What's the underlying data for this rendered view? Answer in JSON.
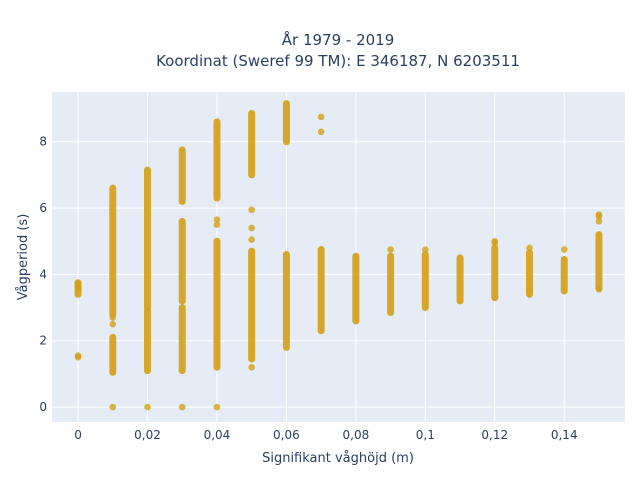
{
  "chart_data": {
    "type": "scatter",
    "title_lines": [
      "År 1979 - 2019",
      "Koordinat (Sweref 99 TM): E 346187, N 6203511"
    ],
    "xlabel": "Signifikant våghöjd (m)",
    "ylabel": "Vågperiod (s)",
    "xlim": [
      -0.0075,
      0.1575
    ],
    "ylim": [
      -0.45,
      9.5
    ],
    "x_ticks": [
      0,
      0.02,
      0.04,
      0.06,
      0.08,
      0.1,
      0.12,
      0.14
    ],
    "x_tick_labels": [
      "0",
      "0,02",
      "0,04",
      "0,06",
      "0,08",
      "0,1",
      "0,12",
      "0,14"
    ],
    "y_ticks": [
      0,
      2,
      4,
      6,
      8
    ],
    "y_tick_labels": [
      "0",
      "2",
      "4",
      "6",
      "8"
    ],
    "grid": true,
    "marker_color": "#D4A017",
    "plot_background": "#E5ECF6",
    "series": [
      {
        "ranges": [
          {
            "x": 0,
            "from": 3.4,
            "to": 3.75
          },
          {
            "x": 0.01,
            "from": 2.8,
            "to": 6.6
          },
          {
            "x": 0.01,
            "from": 1.05,
            "to": 2.1
          },
          {
            "x": 0.02,
            "from": 3.0,
            "to": 7.15
          },
          {
            "x": 0.02,
            "from": 1.1,
            "to": 2.9
          },
          {
            "x": 0.03,
            "from": 6.2,
            "to": 7.75
          },
          {
            "x": 0.03,
            "from": 3.2,
            "to": 5.6
          },
          {
            "x": 0.03,
            "from": 1.1,
            "to": 3.0
          },
          {
            "x": 0.04,
            "from": 6.3,
            "to": 8.6
          },
          {
            "x": 0.04,
            "from": 1.2,
            "to": 5.0
          },
          {
            "x": 0.05,
            "from": 7.0,
            "to": 8.85
          },
          {
            "x": 0.05,
            "from": 1.45,
            "to": 4.7
          },
          {
            "x": 0.06,
            "from": 8.0,
            "to": 9.15
          },
          {
            "x": 0.06,
            "from": 1.8,
            "to": 4.6
          },
          {
            "x": 0.07,
            "from": 2.3,
            "to": 4.75
          },
          {
            "x": 0.08,
            "from": 2.6,
            "to": 4.55
          },
          {
            "x": 0.09,
            "from": 2.85,
            "to": 4.55
          },
          {
            "x": 0.1,
            "from": 3.0,
            "to": 4.6
          },
          {
            "x": 0.11,
            "from": 3.2,
            "to": 4.5
          },
          {
            "x": 0.12,
            "from": 3.3,
            "to": 4.8
          },
          {
            "x": 0.13,
            "from": 3.4,
            "to": 4.65
          },
          {
            "x": 0.14,
            "from": 3.5,
            "to": 4.45
          },
          {
            "x": 0.15,
            "from": 3.6,
            "to": 5.2
          }
        ],
        "points": [
          {
            "x": 0,
            "y": 3.6
          },
          {
            "x": 0,
            "y": 3.7
          },
          {
            "x": 0,
            "y": 1.55
          },
          {
            "x": 0,
            "y": 1.5
          },
          {
            "x": 0.01,
            "y": 2.7
          },
          {
            "x": 0.01,
            "y": 2.5
          },
          {
            "x": 0.01,
            "y": 0
          },
          {
            "x": 0.02,
            "y": 0
          },
          {
            "x": 0.03,
            "y": 0
          },
          {
            "x": 0.04,
            "y": 5.65
          },
          {
            "x": 0.04,
            "y": 5.5
          },
          {
            "x": 0.04,
            "y": 0
          },
          {
            "x": 0.05,
            "y": 5.95
          },
          {
            "x": 0.05,
            "y": 5.4
          },
          {
            "x": 0.05,
            "y": 5.05
          },
          {
            "x": 0.05,
            "y": 1.2
          },
          {
            "x": 0.07,
            "y": 8.75
          },
          {
            "x": 0.07,
            "y": 8.3
          },
          {
            "x": 0.09,
            "y": 4.75
          },
          {
            "x": 0.1,
            "y": 4.75
          },
          {
            "x": 0.12,
            "y": 5.0
          },
          {
            "x": 0.12,
            "y": 4.95
          },
          {
            "x": 0.13,
            "y": 4.8
          },
          {
            "x": 0.14,
            "y": 4.75
          },
          {
            "x": 0.15,
            "y": 5.8
          },
          {
            "x": 0.15,
            "y": 5.75
          },
          {
            "x": 0.15,
            "y": 5.6
          },
          {
            "x": 0.15,
            "y": 3.55
          }
        ]
      }
    ]
  }
}
